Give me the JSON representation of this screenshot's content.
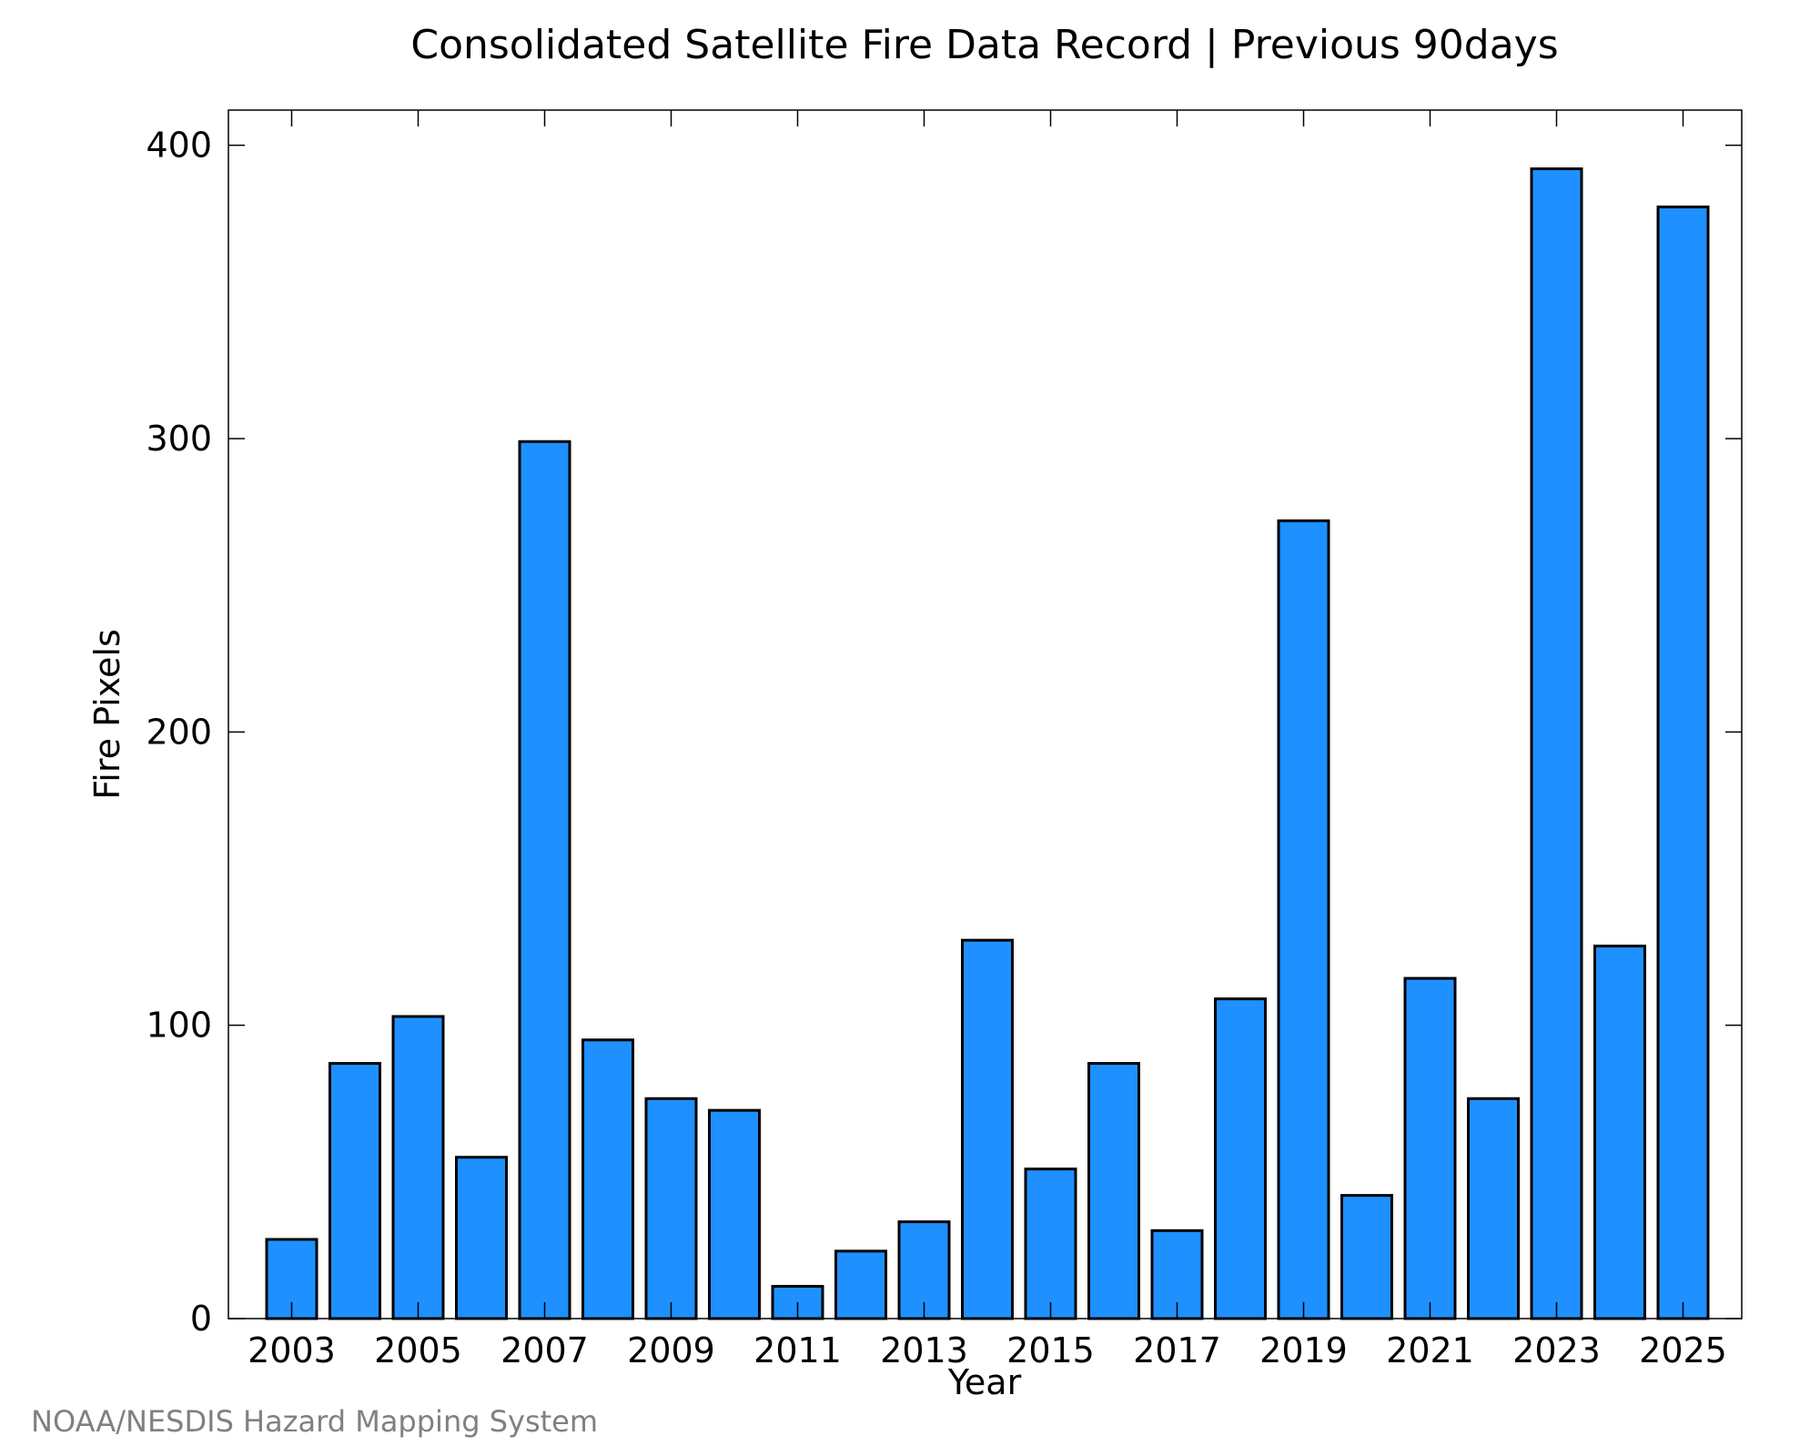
{
  "chart_data": {
    "type": "bar",
    "title": "Consolidated Satellite Fire Data Record | Previous 90days",
    "xlabel": "Year",
    "ylabel": "Fire Pixels",
    "categories": [
      "2003",
      "2004",
      "2005",
      "2006",
      "2007",
      "2008",
      "2009",
      "2010",
      "2011",
      "2012",
      "2013",
      "2014",
      "2015",
      "2016",
      "2017",
      "2018",
      "2019",
      "2020",
      "2021",
      "2022",
      "2023",
      "2024",
      "2025"
    ],
    "values": [
      27,
      87,
      103,
      55,
      299,
      95,
      75,
      71,
      11,
      23,
      33,
      129,
      51,
      87,
      30,
      109,
      272,
      42,
      116,
      75,
      392,
      127,
      379
    ],
    "x_tick_labels": [
      "2003",
      "2005",
      "2007",
      "2009",
      "2011",
      "2013",
      "2015",
      "2017",
      "2019",
      "2021",
      "2023",
      "2025"
    ],
    "y_ticks": [
      0,
      100,
      200,
      300,
      400
    ],
    "ylim": [
      0,
      412
    ],
    "grid": false,
    "bar_color": "#1e90ff",
    "edge_color": "#000000"
  },
  "credit": "NOAA/NESDIS Hazard Mapping System"
}
